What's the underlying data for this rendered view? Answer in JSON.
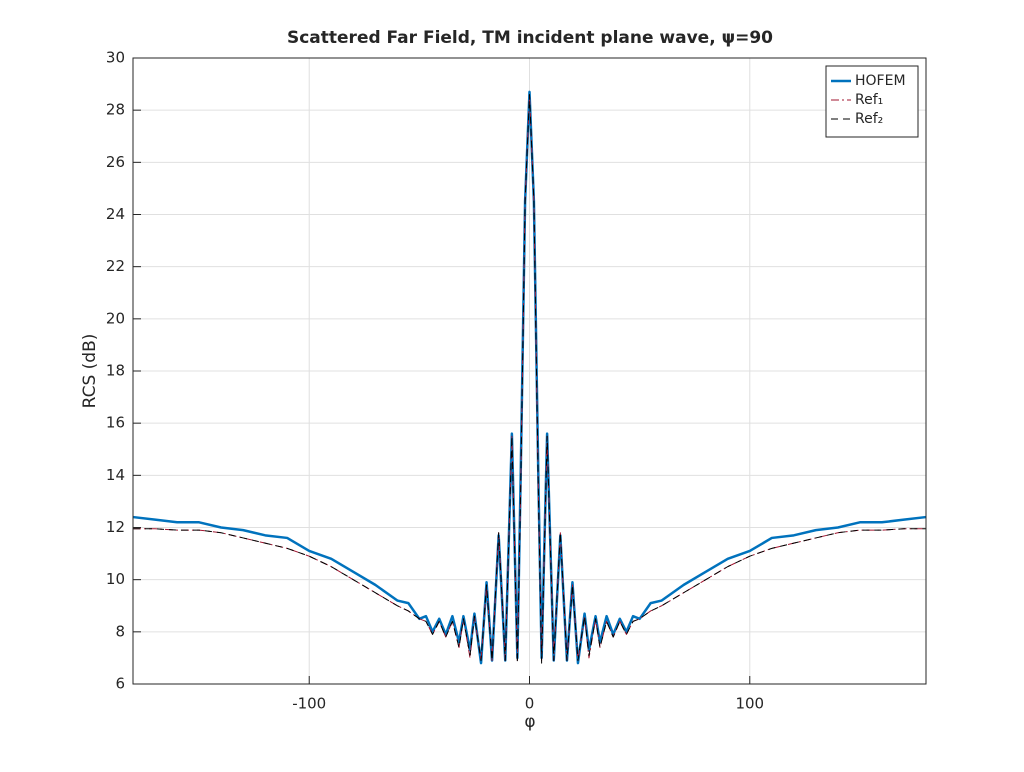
{
  "chart_data": {
    "type": "line",
    "title": "Scattered Far Field, TM incident plane wave, ψ=90",
    "xlabel": "φ",
    "ylabel": "RCS (dB)",
    "x": [
      -180,
      -170,
      -160,
      -150,
      -140,
      -130,
      -120,
      -110,
      -100,
      -90,
      -80,
      -70,
      -60,
      -55,
      -50,
      -47,
      -44,
      -41,
      -38,
      -35,
      -32,
      -30,
      -27,
      -25,
      -22,
      -19.5,
      -17,
      -14,
      -11,
      -8,
      -5.5,
      -4,
      -2,
      0,
      2,
      4,
      5.5,
      8,
      11,
      14,
      17,
      19.5,
      22,
      25,
      27,
      30,
      32,
      35,
      38,
      41,
      44,
      47,
      50,
      55,
      60,
      70,
      80,
      90,
      100,
      110,
      120,
      130,
      140,
      150,
      160,
      170,
      180
    ],
    "series": [
      {
        "name": "HOFEM",
        "color": "#0072bd",
        "linestyle": "-",
        "linewidth": 2.5,
        "values": [
          12.4,
          12.3,
          12.2,
          12.2,
          12.0,
          11.9,
          11.7,
          11.6,
          11.1,
          10.8,
          10.3,
          9.8,
          9.2,
          9.1,
          8.5,
          8.6,
          8.0,
          8.5,
          7.9,
          8.6,
          7.6,
          8.6,
          7.3,
          8.7,
          6.8,
          9.9,
          6.9,
          11.7,
          6.9,
          15.6,
          7.0,
          14.0,
          24.5,
          28.7,
          24.5,
          14.0,
          7.0,
          15.6,
          6.9,
          11.7,
          6.9,
          9.9,
          6.8,
          8.7,
          7.3,
          8.6,
          7.6,
          8.6,
          7.9,
          8.5,
          8.0,
          8.6,
          8.5,
          9.1,
          9.2,
          9.8,
          10.3,
          10.8,
          11.1,
          11.6,
          11.7,
          11.9,
          12.0,
          12.2,
          12.2,
          12.3,
          12.4
        ]
      },
      {
        "name": "Ref₁",
        "color": "#a2142f",
        "linestyle": "-.",
        "linewidth": 1,
        "values": [
          11.95,
          11.95,
          11.9,
          11.9,
          11.8,
          11.6,
          11.4,
          11.2,
          10.9,
          10.5,
          10.0,
          9.5,
          9.0,
          8.8,
          8.5,
          8.4,
          7.9,
          8.4,
          7.8,
          8.4,
          7.4,
          8.5,
          7.0,
          8.6,
          6.9,
          9.8,
          6.9,
          11.8,
          6.9,
          15.5,
          6.9,
          13.5,
          24.5,
          28.6,
          24.5,
          13.5,
          6.9,
          15.5,
          6.9,
          11.8,
          6.9,
          9.8,
          6.9,
          8.6,
          7.0,
          8.5,
          7.4,
          8.4,
          7.8,
          8.4,
          7.9,
          8.4,
          8.5,
          8.8,
          9.0,
          9.5,
          10.0,
          10.5,
          10.9,
          11.2,
          11.4,
          11.6,
          11.8,
          11.9,
          11.9,
          11.95,
          11.95
        ]
      },
      {
        "name": "Ref₂",
        "color": "#000000",
        "linestyle": "--",
        "linewidth": 1,
        "values": [
          11.95,
          11.95,
          11.9,
          11.9,
          11.8,
          11.6,
          11.4,
          11.2,
          10.9,
          10.5,
          10.0,
          9.5,
          9.0,
          8.8,
          8.5,
          8.4,
          7.9,
          8.4,
          7.8,
          8.4,
          7.4,
          8.5,
          7.1,
          8.6,
          6.9,
          9.8,
          6.9,
          11.8,
          6.9,
          15.5,
          6.8,
          13.5,
          24.5,
          28.6,
          24.5,
          13.5,
          6.8,
          15.5,
          6.9,
          11.8,
          6.9,
          9.8,
          6.9,
          8.6,
          7.1,
          8.5,
          7.4,
          8.4,
          7.8,
          8.4,
          7.9,
          8.4,
          8.5,
          8.8,
          9.0,
          9.5,
          10.0,
          10.5,
          10.9,
          11.2,
          11.4,
          11.6,
          11.8,
          11.9,
          11.9,
          11.95,
          11.95
        ]
      }
    ],
    "xlim": [
      -180,
      180
    ],
    "xticks": [
      -100,
      0,
      100
    ],
    "ylim": [
      6,
      30
    ],
    "yticks": [
      6,
      8,
      10,
      12,
      14,
      16,
      18,
      20,
      22,
      24,
      26,
      28,
      30
    ],
    "grid": true,
    "legend": "northeast"
  }
}
